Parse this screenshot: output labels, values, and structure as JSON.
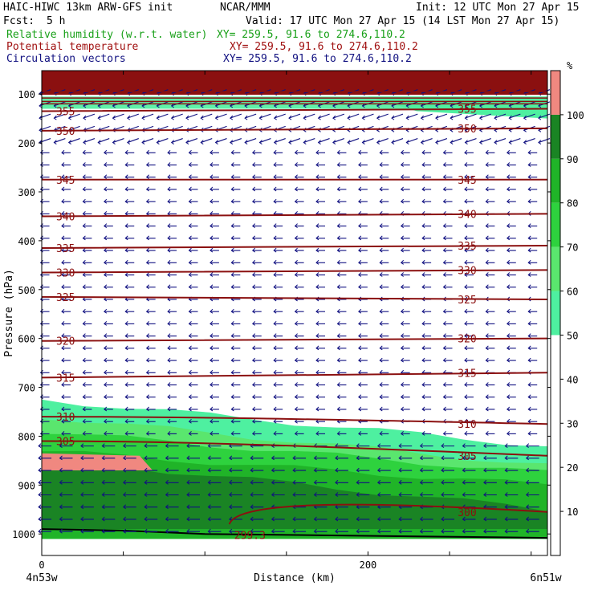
{
  "header": {
    "model": "HAIC-HIWC 13km ARW-GFS init",
    "org": "NCAR/MMM",
    "init": "Init: 12 UTC Mon 27 Apr 15",
    "fcst_label": "Fcst:",
    "fcst_value": "5 h",
    "valid": "Valid: 17 UTC Mon 27 Apr 15 (14 LST Mon 27 Apr 15)",
    "fields": [
      {
        "name": "Relative humidity (w.r.t. water)",
        "xy": "XY= 259.5, 91.6 to 274.6,110.2",
        "color": "#18a018"
      },
      {
        "name": "Potential temperature",
        "xy": "XY= 259.5, 91.6 to 274.6,110.2",
        "color": "#a01010"
      },
      {
        "name": "Circulation vectors",
        "xy": "XY= 259.5, 91.6 to 274.6,110.2",
        "color": "#101080"
      }
    ]
  },
  "chart_data": {
    "type": "heatmap",
    "xlabel": "Distance (km)",
    "ylabel": "Pressure (hPa)",
    "xlim": [
      0,
      310
    ],
    "ylim": [
      1050,
      50
    ],
    "x_ticks": [
      0,
      200
    ],
    "y_ticks": [
      100,
      200,
      300,
      400,
      500,
      600,
      700,
      800,
      900,
      1000
    ],
    "x_endpoints": {
      "left": "4n53w",
      "right": "6n51w"
    },
    "colorbar": {
      "unit": "%",
      "ticks": [
        10,
        20,
        30,
        40,
        50,
        60,
        70,
        80,
        90,
        100
      ],
      "bins": [
        {
          "from": 50,
          "to": 60,
          "color": "#4ef0a0"
        },
        {
          "from": 60,
          "to": 70,
          "color": "#5ae66e"
        },
        {
          "from": 70,
          "to": 80,
          "color": "#2ed23e"
        },
        {
          "from": 80,
          "to": 90,
          "color": "#20b428"
        },
        {
          "from": 90,
          "to": 100,
          "color": "#1a8424"
        },
        {
          "from": 100,
          "to": 110,
          "color": "#f08880"
        }
      ]
    },
    "humidity_regions": [
      {
        "level": 50,
        "top_left": 725,
        "top_right": 820,
        "bottom": 1010
      },
      {
        "level": 60,
        "top_left": 760,
        "top_right": 860,
        "bottom": 1010
      },
      {
        "level": 70,
        "top_left": 790,
        "top_right": 875,
        "bottom": 1010
      },
      {
        "level": 80,
        "top_left": 830,
        "top_right": 900,
        "bottom": 1010
      },
      {
        "level": 90,
        "top_left": 845,
        "top_right": 950,
        "bottom": 990
      },
      {
        "level": 100,
        "patch": "low-left",
        "x": [
          0,
          60
        ],
        "p": [
          835,
          870
        ]
      },
      {
        "level": 50,
        "patch": "upper-right",
        "x": [
          200,
          310
        ],
        "p": [
          105,
          150
        ]
      }
    ],
    "theta_contours": [
      {
        "label": "355",
        "left": 135,
        "right": 130
      },
      {
        "label": "350",
        "left": 175,
        "right": 170
      },
      {
        "label": "345",
        "left": 275,
        "right": 275
      },
      {
        "label": "340",
        "left": 350,
        "right": 345
      },
      {
        "label": "335",
        "left": 415,
        "right": 410
      },
      {
        "label": "330",
        "left": 465,
        "right": 460
      },
      {
        "label": "325",
        "left": 515,
        "right": 520
      },
      {
        "label": "320",
        "left": 605,
        "right": 600
      },
      {
        "label": "315",
        "left": 680,
        "right": 670
      },
      {
        "label": "310",
        "left": 760,
        "right": 775
      },
      {
        "label": "305",
        "left": 810,
        "right": 840
      },
      {
        "label": "300",
        "left": null,
        "right": 955
      },
      {
        "label": "299.3",
        "left": null,
        "right": null
      }
    ],
    "wind": "Circulation vectors mostly easterly (pointing left); stronger near tropopause layer ~100-200 hPa and near surface",
    "grid": false
  }
}
